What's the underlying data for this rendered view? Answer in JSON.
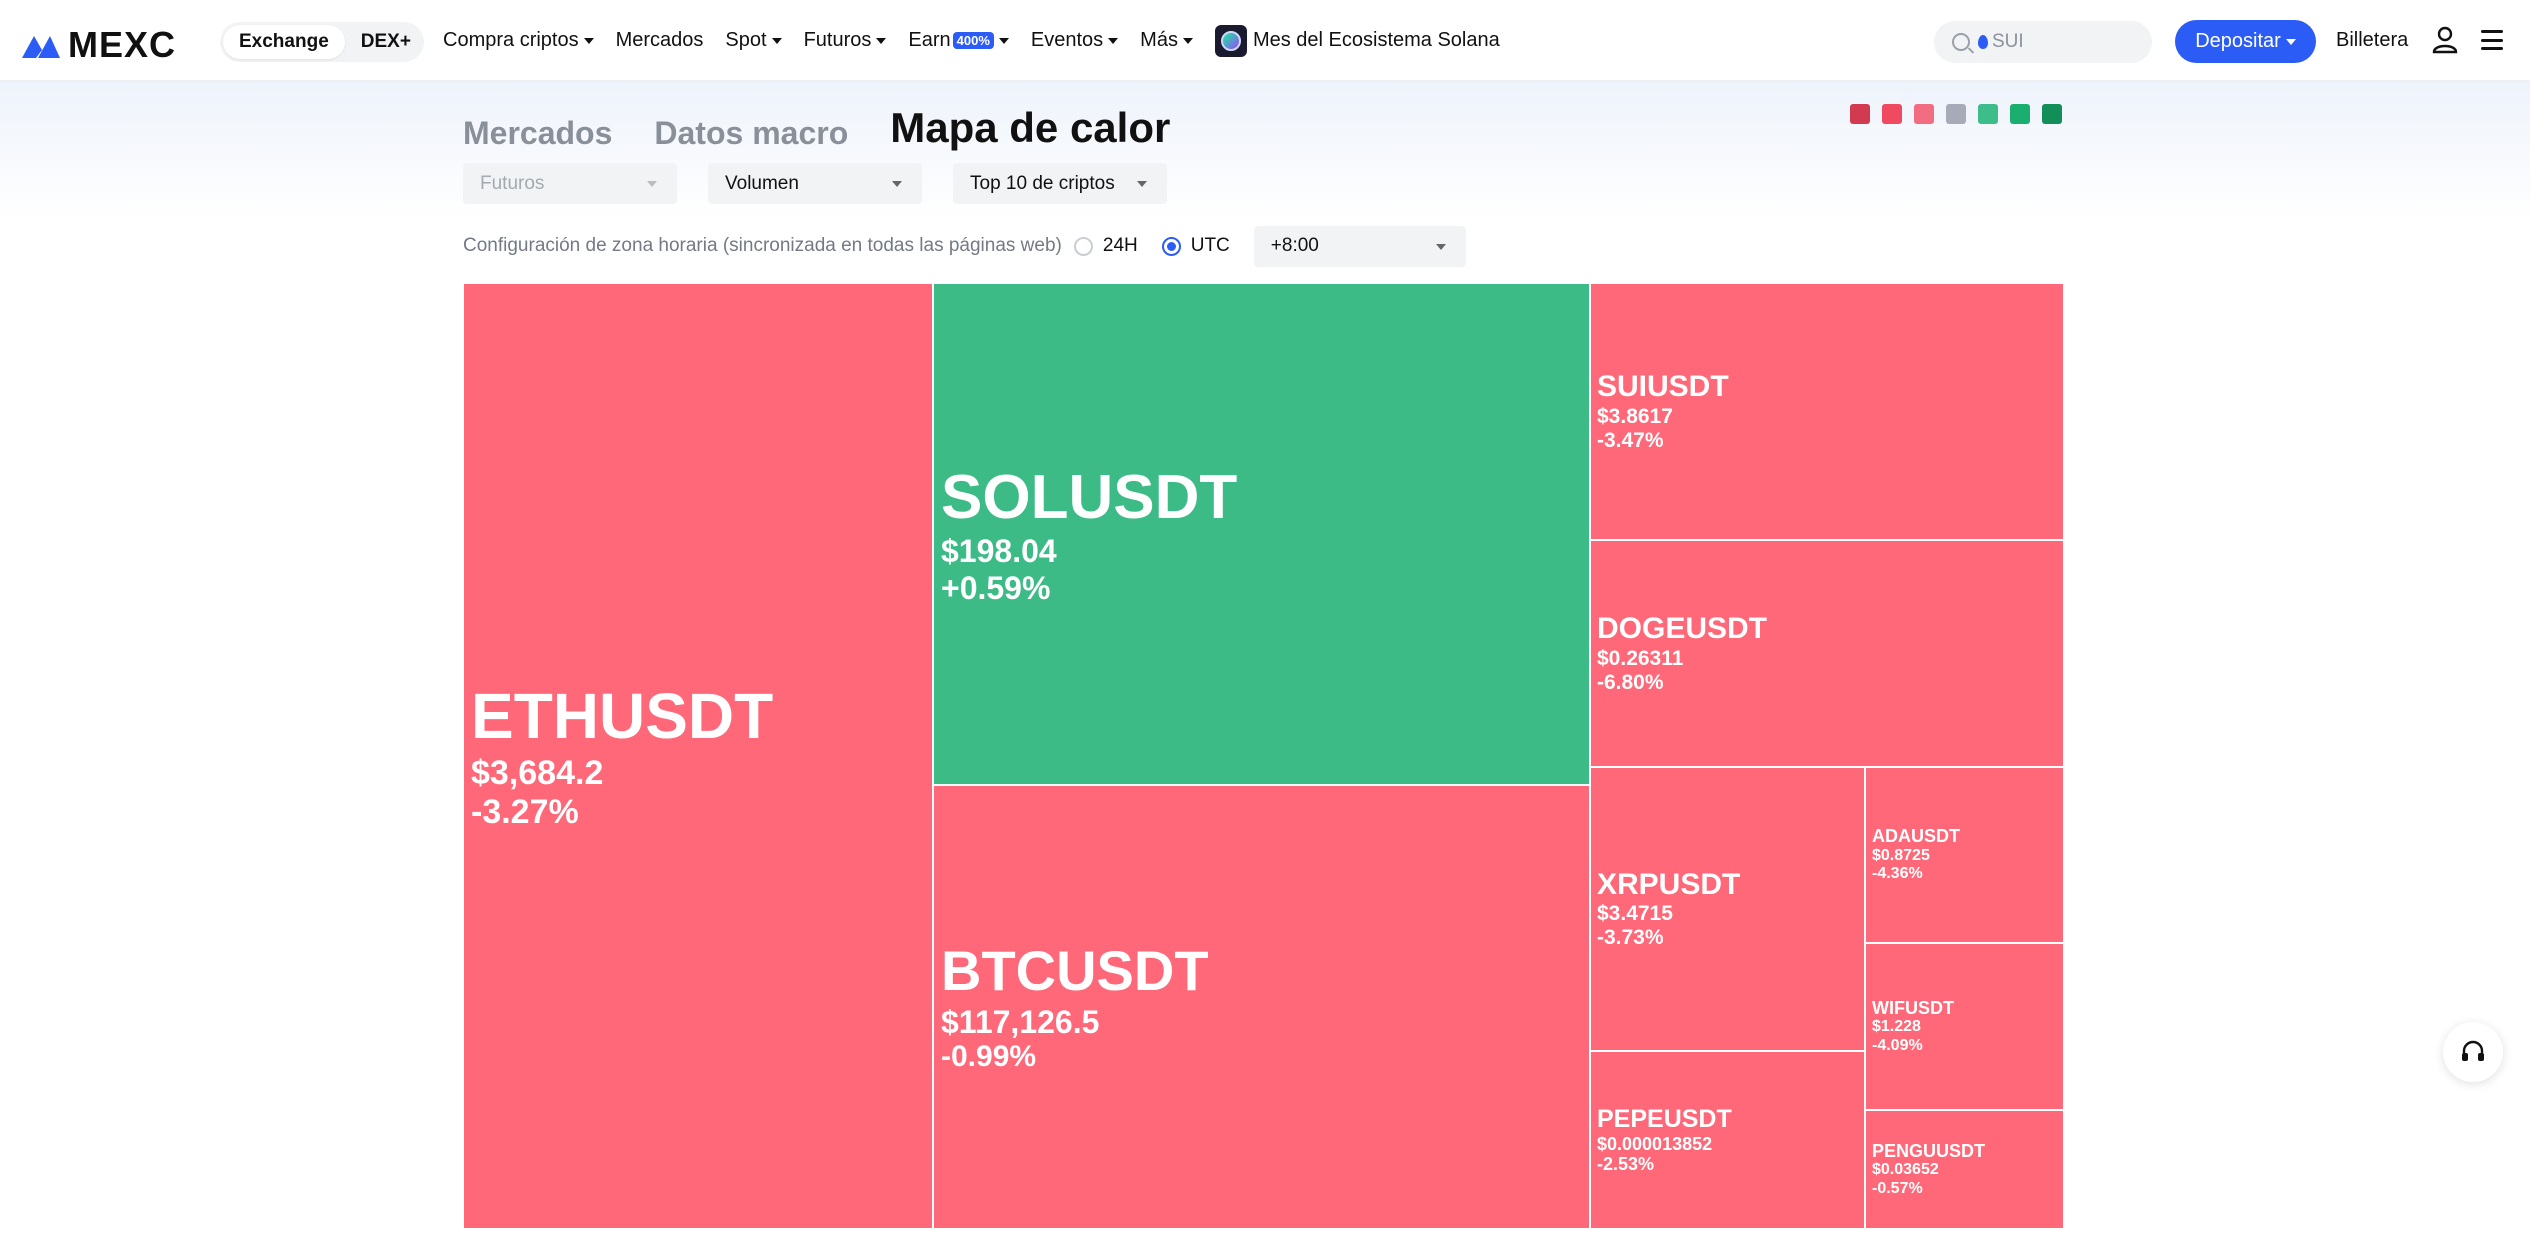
{
  "nav": {
    "logo_text": "MEXC",
    "segment": [
      "Exchange",
      "DEX+"
    ],
    "menu": [
      {
        "label": "Compra criptos",
        "caret": true
      },
      {
        "label": "Mercados",
        "caret": false
      },
      {
        "label": "Spot",
        "caret": true
      },
      {
        "label": "Futuros",
        "caret": true
      },
      {
        "label": "Earn",
        "badge": "400%",
        "caret": true
      },
      {
        "label": "Eventos",
        "caret": true
      },
      {
        "label": "Más",
        "caret": true
      }
    ],
    "promo_label": "Mes del Ecosistema Solana",
    "search_placeholder": "SUI",
    "deposit_label": "Depositar",
    "wallet_label": "Billetera"
  },
  "header": {
    "tabs": [
      "Mercados",
      "Datos macro",
      "Mapa de calor"
    ],
    "active_tab": 2,
    "legend_colors": [
      "#d23a50",
      "#f04a60",
      "#f26d82",
      "#a7abb8",
      "#3dbd8a",
      "#1aae6f",
      "#128f58"
    ]
  },
  "filters": {
    "market": "Futuros",
    "metric": "Volumen",
    "scope": "Top 10 de criptos"
  },
  "timezone": {
    "label": "Configuración de zona horaria (sincronizada en todas las páginas web)",
    "options": [
      "24H",
      "UTC"
    ],
    "selected": "UTC",
    "offset": "+8:00"
  },
  "colors": {
    "down": "#fe6878",
    "up": "#3dbb87",
    "accent": "#2b5cf6"
  },
  "heatmap": [
    {
      "symbol": "ETHUSDT",
      "price": "$3,684.2",
      "change": "-3.27%",
      "direction": "down"
    },
    {
      "symbol": "SOLUSDT",
      "price": "$198.04",
      "change": "+0.59%",
      "direction": "up"
    },
    {
      "symbol": "BTCUSDT",
      "price": "$117,126.5",
      "change": "-0.99%",
      "direction": "down"
    },
    {
      "symbol": "SUIUSDT",
      "price": "$3.8617",
      "change": "-3.47%",
      "direction": "down"
    },
    {
      "symbol": "DOGEUSDT",
      "price": "$0.26311",
      "change": "-6.80%",
      "direction": "down"
    },
    {
      "symbol": "XRPUSDT",
      "price": "$3.4715",
      "change": "-3.73%",
      "direction": "down"
    },
    {
      "symbol": "PEPEUSDT",
      "price": "$0.000013852",
      "change": "-2.53%",
      "direction": "down"
    },
    {
      "symbol": "ADAUSDT",
      "price": "$0.8725",
      "change": "-4.36%",
      "direction": "down"
    },
    {
      "symbol": "WIFUSDT",
      "price": "$1.228",
      "change": "-4.09%",
      "direction": "down"
    },
    {
      "symbol": "PENGUUSDT",
      "price": "$0.03652",
      "change": "-0.57%",
      "direction": "down"
    }
  ]
}
